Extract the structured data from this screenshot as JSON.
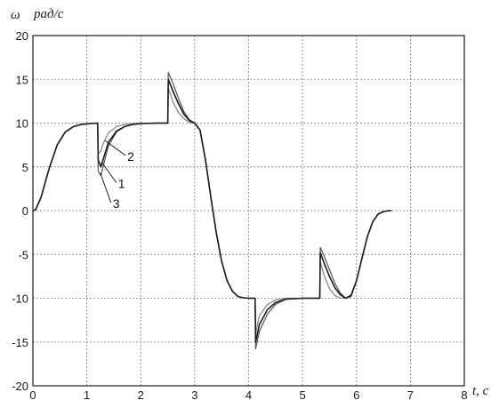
{
  "chart_data": {
    "type": "line",
    "ylabel_symbol": "ω",
    "ylabel_unit": "рад/с",
    "xlabel": "t, c",
    "xlim": [
      0,
      8
    ],
    "ylim": [
      -20,
      20
    ],
    "xticks": [
      "0",
      "1",
      "2",
      "3",
      "4",
      "5",
      "6",
      "7",
      "8"
    ],
    "yticks": [
      "20",
      "15",
      "10",
      "5",
      "0",
      "-5",
      "-10",
      "-15",
      "-20"
    ],
    "grid": true,
    "colors": {
      "curve": "#1a1a1a",
      "curve_light": "#8a8a8a",
      "grid": "#7a7a7a",
      "axis": "#1a1a1a"
    },
    "annotations": [
      {
        "text": "2",
        "tip": [
          1.34,
          8.0
        ],
        "at": [
          1.75,
          5.9
        ]
      },
      {
        "text": "1",
        "tip": [
          1.28,
          5.5
        ],
        "at": [
          1.58,
          2.8
        ]
      },
      {
        "text": "3",
        "tip": [
          1.25,
          4.3
        ],
        "at": [
          1.48,
          0.5
        ]
      }
    ],
    "series": [
      {
        "id": "1",
        "x": [
          0,
          0.05,
          0.15,
          0.3,
          0.45,
          0.6,
          0.75,
          0.9,
          1.05,
          1.2,
          1.21,
          1.26,
          1.3,
          1.4,
          1.55,
          1.7,
          1.85,
          2.0,
          2.3,
          2.5,
          2.51,
          2.6,
          2.7,
          2.8,
          2.9,
          3.0,
          3.1,
          3.2,
          3.3,
          3.4,
          3.5,
          3.6,
          3.7,
          3.8,
          3.9,
          4.0,
          4.12,
          4.13,
          4.2,
          4.35,
          4.5,
          4.7,
          5.0,
          5.32,
          5.33,
          5.4,
          5.5,
          5.6,
          5.7,
          5.8,
          5.9,
          6.0,
          6.1,
          6.2,
          6.3,
          6.4,
          6.5,
          6.6,
          6.65
        ],
        "y": [
          0,
          0.1,
          1.5,
          4.8,
          7.5,
          9.0,
          9.6,
          9.85,
          9.95,
          10,
          5.8,
          5.0,
          5.8,
          7.8,
          9.1,
          9.6,
          9.85,
          9.95,
          10,
          10,
          15.0,
          13.6,
          12.2,
          11.0,
          10.3,
          10.0,
          9.2,
          5.8,
          1.5,
          -2.5,
          -5.8,
          -8.0,
          -9.2,
          -9.8,
          -9.95,
          -10,
          -10,
          -15.0,
          -13.0,
          -11.3,
          -10.5,
          -10.1,
          -10,
          -10,
          -4.8,
          -6.0,
          -7.5,
          -8.8,
          -9.6,
          -10.0,
          -9.7,
          -8.0,
          -5.5,
          -3.0,
          -1.3,
          -0.4,
          -0.1,
          0,
          0
        ]
      },
      {
        "id": "2",
        "x": [
          0,
          0.05,
          0.15,
          0.3,
          0.45,
          0.6,
          0.75,
          0.9,
          1.05,
          1.2,
          1.21,
          1.26,
          1.3,
          1.4,
          1.55,
          1.7,
          1.85,
          2.0,
          2.3,
          2.5,
          2.51,
          2.6,
          2.7,
          2.8,
          2.9,
          3.0,
          3.1,
          3.2,
          3.3,
          3.4,
          3.5,
          3.6,
          3.7,
          3.8,
          3.9,
          4.0,
          4.12,
          4.13,
          4.2,
          4.35,
          4.5,
          4.7,
          5.0,
          5.32,
          5.33,
          5.4,
          5.5,
          5.6,
          5.7,
          5.8,
          5.9,
          6.0,
          6.1,
          6.2,
          6.3,
          6.4,
          6.5,
          6.6,
          6.65
        ],
        "y": [
          0,
          0.1,
          1.5,
          4.8,
          7.5,
          9.0,
          9.6,
          9.85,
          9.95,
          10,
          6.5,
          6.8,
          7.6,
          8.9,
          9.6,
          9.85,
          9.95,
          10,
          10,
          10,
          14.0,
          12.4,
          11.2,
          10.5,
          10.1,
          10.0,
          9.2,
          5.8,
          1.5,
          -2.5,
          -5.8,
          -8.0,
          -9.2,
          -9.8,
          -9.95,
          -10,
          -10,
          -14.0,
          -12.0,
          -10.7,
          -10.2,
          -10.0,
          -10,
          -10,
          -5.8,
          -7.4,
          -8.9,
          -9.7,
          -10.0,
          -10.0,
          -9.6,
          -8.0,
          -5.5,
          -3.0,
          -1.3,
          -0.4,
          -0.1,
          0,
          0
        ]
      },
      {
        "id": "3",
        "x": [
          0,
          0.05,
          0.15,
          0.3,
          0.45,
          0.6,
          0.75,
          0.9,
          1.05,
          1.2,
          1.21,
          1.26,
          1.3,
          1.4,
          1.55,
          1.7,
          1.85,
          2.0,
          2.3,
          2.5,
          2.51,
          2.6,
          2.7,
          2.8,
          2.9,
          3.0,
          3.1,
          3.2,
          3.3,
          3.4,
          3.5,
          3.6,
          3.7,
          3.8,
          3.9,
          4.0,
          4.12,
          4.13,
          4.2,
          4.35,
          4.5,
          4.7,
          5.0,
          5.32,
          5.33,
          5.4,
          5.5,
          5.6,
          5.7,
          5.8,
          5.9,
          6.0,
          6.1,
          6.2,
          6.3,
          6.4,
          6.5,
          6.6,
          6.65
        ],
        "y": [
          0,
          0.1,
          1.5,
          4.8,
          7.5,
          9.0,
          9.6,
          9.85,
          9.95,
          10,
          4.5,
          4.0,
          5.0,
          7.4,
          9.0,
          9.6,
          9.85,
          9.95,
          10,
          10,
          15.8,
          14.5,
          12.8,
          11.3,
          10.4,
          10.0,
          9.2,
          5.8,
          1.5,
          -2.5,
          -5.8,
          -8.0,
          -9.2,
          -9.8,
          -9.95,
          -10,
          -10,
          -15.8,
          -13.8,
          -11.8,
          -10.7,
          -10.1,
          -10,
          -10,
          -4.2,
          -5.2,
          -6.7,
          -8.3,
          -9.4,
          -10.0,
          -9.8,
          -8.0,
          -5.5,
          -3.0,
          -1.3,
          -0.4,
          -0.1,
          0,
          0
        ]
      }
    ]
  }
}
